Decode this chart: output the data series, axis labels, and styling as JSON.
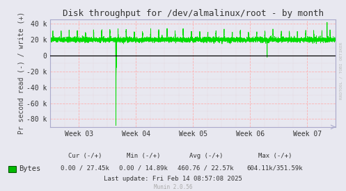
{
  "title": "Disk throughput for /dev/almalinux/root - by month",
  "ylabel": "Pr second read (-) / write (+)",
  "bg_color": "#e8e8f0",
  "plot_bg_color": "#e8e8f0",
  "grid_color_major": "#ffaaaa",
  "grid_color_minor": "#ddaaaa",
  "line_color": "#00dd00",
  "zero_line_color": "#000000",
  "border_color": "#aaaacc",
  "ylim": [
    -90000,
    46000
  ],
  "yticks": [
    -80000,
    -60000,
    -40000,
    -20000,
    0,
    20000,
    40000
  ],
  "ytick_labels": [
    "-80 k",
    "-60 k",
    "-40 k",
    "-20 k",
    "0",
    "20 k",
    "40 k"
  ],
  "xtick_labels": [
    "Week 03",
    "Week 04",
    "Week 05",
    "Week 06",
    "Week 07"
  ],
  "legend_label": "Bytes",
  "legend_color": "#00bb00",
  "stats_cur": "Cur (-/+)",
  "stats_min": "Min (-/+)",
  "stats_avg": "Avg (-/+)",
  "stats_max": "Max (-/+)",
  "stats_cur_val": "0.00 / 27.45k",
  "stats_min_val": "0.00 / 14.89k",
  "stats_avg_val": "460.76 / 22.57k",
  "stats_max_val": "604.11k/351.59k",
  "last_update": "Last update: Fri Feb 14 08:57:08 2025",
  "munin_version": "Munin 2.0.56",
  "watermark": "RRDTOOL / TOBI OETIKER",
  "title_fontsize": 9,
  "axis_fontsize": 7,
  "legend_fontsize": 7.5,
  "stats_fontsize": 6.5
}
